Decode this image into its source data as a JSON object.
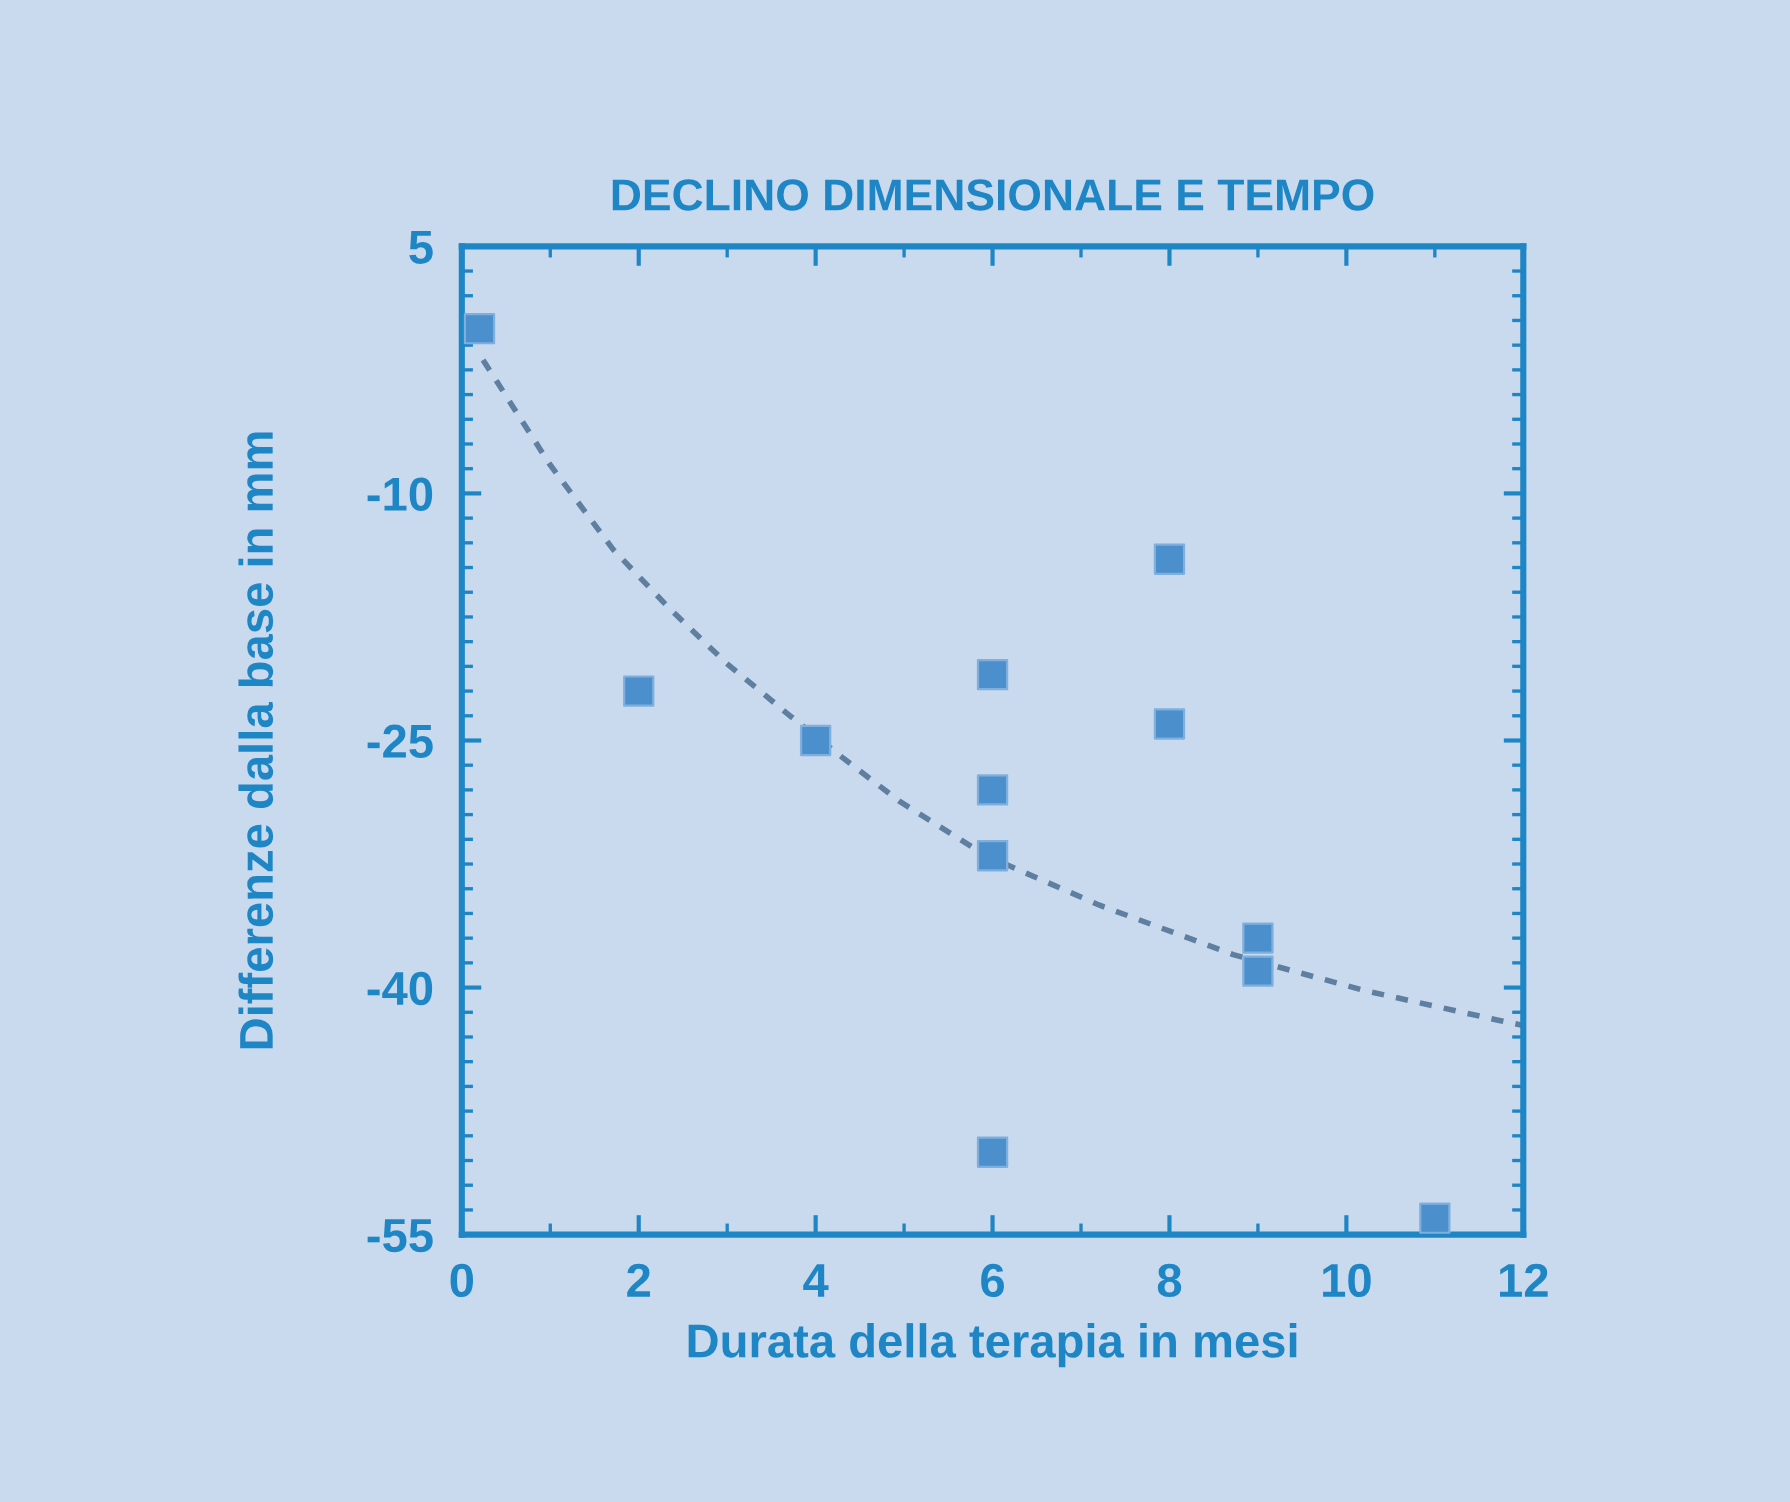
{
  "chart_data": {
    "type": "scatter",
    "title": "DECLINO DIMENSIONALE E TEMPO",
    "xlabel": "Durata della terapia in mesi",
    "ylabel": "Differenze dalla base in mm",
    "xlim": [
      0,
      12
    ],
    "ylim": [
      -55,
      5
    ],
    "xticks": [
      0,
      2,
      4,
      6,
      8,
      10,
      12
    ],
    "yticks": [
      5,
      -10,
      -25,
      -40,
      -55
    ],
    "grid": false,
    "marker": "square",
    "series": [
      {
        "color": "#4b8fcc",
        "x": [
          0.2,
          2,
          4,
          6,
          6,
          6,
          6,
          8,
          8,
          9,
          9,
          11
        ],
        "values": [
          0,
          -22,
          -25,
          -21,
          -28,
          -32,
          -50,
          -14,
          -24,
          -37,
          -39,
          -54
        ]
      },
      {
        "type": "line",
        "color": "#5f7fa0",
        "line_style": "dashed",
        "marker": "none",
        "x": [
          0.24,
          0.99,
          1.71,
          2.35,
          2.99,
          3.71,
          4.27,
          4.95,
          5.93,
          7.21,
          8.72,
          10.22,
          11.73,
          12
        ],
        "values": [
          -1.9,
          -8.2,
          -13.4,
          -17.0,
          -20.3,
          -23.5,
          -25.9,
          -28.7,
          -32.0,
          -35.0,
          -38.0,
          -40.2,
          -42.0,
          -42.3
        ]
      }
    ]
  }
}
